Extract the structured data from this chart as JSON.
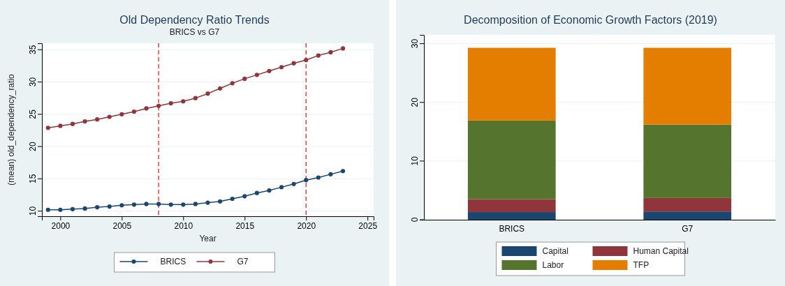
{
  "chart_data": [
    {
      "type": "line",
      "title": "Old Dependency Ratio Trends",
      "subtitle": "BRICS vs G7",
      "xlabel": "Year",
      "ylabel": "(mean) old_dependency_ratio",
      "x": [
        1999,
        2000,
        2001,
        2002,
        2003,
        2004,
        2005,
        2006,
        2007,
        2008,
        2009,
        2010,
        2011,
        2012,
        2013,
        2014,
        2015,
        2016,
        2017,
        2018,
        2019,
        2020,
        2021,
        2022,
        2023
      ],
      "series": [
        {
          "name": "BRICS",
          "color": "#1a476f",
          "values": [
            10.2,
            10.2,
            10.3,
            10.4,
            10.6,
            10.7,
            10.9,
            11.0,
            11.1,
            11.1,
            11.0,
            11.0,
            11.1,
            11.3,
            11.5,
            11.9,
            12.3,
            12.8,
            13.2,
            13.7,
            14.2,
            14.8,
            15.2,
            15.7,
            16.2
          ]
        },
        {
          "name": "G7",
          "color": "#90353b",
          "values": [
            22.9,
            23.2,
            23.5,
            23.9,
            24.2,
            24.6,
            25.0,
            25.4,
            25.9,
            26.3,
            26.7,
            27.0,
            27.5,
            28.2,
            29.0,
            29.8,
            30.5,
            31.1,
            31.7,
            32.3,
            32.9,
            33.4,
            34.1,
            34.6,
            35.2
          ]
        }
      ],
      "xlim": [
        1998.5,
        2025.5
      ],
      "xticks": [
        2000,
        2005,
        2010,
        2015,
        2020,
        2025
      ],
      "ylim": [
        9.2,
        36
      ],
      "yticks": [
        10,
        15,
        20,
        25,
        30,
        35
      ],
      "ref_lines": [
        {
          "axis": "x",
          "value": 2008,
          "color": "#e8423f",
          "line_style": "dashed"
        },
        {
          "axis": "x",
          "value": 2020,
          "color": "#e8423f",
          "line_style": "dashed"
        }
      ],
      "grid": "y",
      "legend": "bottom",
      "marker": "circle",
      "line_style": "solid"
    },
    {
      "type": "bar",
      "stacked": true,
      "title": "Decomposition of Economic Growth Factors (2019)",
      "categories": [
        "BRICS",
        "G7"
      ],
      "series": [
        {
          "name": "Capital",
          "color": "#1a476f",
          "values": [
            1.3,
            1.4
          ]
        },
        {
          "name": "Human Capital",
          "color": "#90353b",
          "values": [
            2.2,
            2.3
          ]
        },
        {
          "name": "Labor",
          "color": "#55752f",
          "values": [
            13.4,
            12.5
          ]
        },
        {
          "name": "TFP",
          "color": "#e37e00",
          "values": [
            12.4,
            13.1
          ]
        }
      ],
      "ylim": [
        0,
        31.5
      ],
      "yticks": [
        0,
        10,
        20,
        30
      ],
      "grid": "y",
      "legend": "bottom"
    }
  ]
}
